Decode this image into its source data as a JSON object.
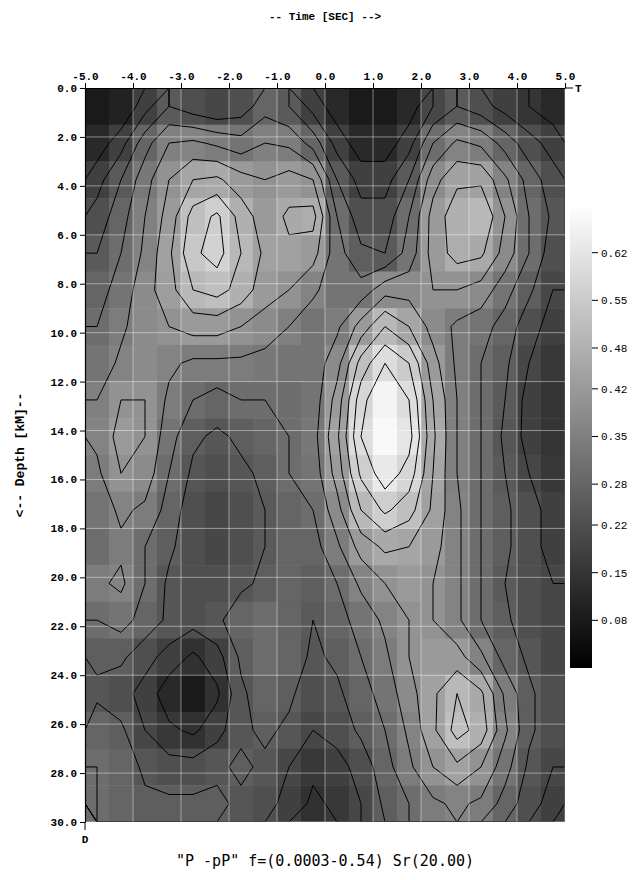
{
  "chart_data": {
    "type": "heatmap",
    "title": "\"P -pP\" f=(0.0003-0.54) Sr(20.00)",
    "x_label": "-- Time [SEC]  -->",
    "y_label": "<-- Depth [kM]--",
    "annotations": [
      "T",
      "D"
    ],
    "xlim": [
      -5,
      5
    ],
    "ylim": [
      0,
      30
    ],
    "xticks": [
      {
        "value": -5,
        "label": "-5.0"
      },
      {
        "value": -4,
        "label": "-4.0"
      },
      {
        "value": -3,
        "label": "-3.0"
      },
      {
        "value": -2,
        "label": "-2.0"
      },
      {
        "value": -1,
        "label": "-1.0"
      },
      {
        "value": 0,
        "label": "0.0"
      },
      {
        "value": 1,
        "label": "1.0"
      },
      {
        "value": 2,
        "label": "2.0"
      },
      {
        "value": 3,
        "label": "3.0"
      },
      {
        "value": 4,
        "label": "4.0"
      },
      {
        "value": 5,
        "label": "5.0"
      }
    ],
    "yticks": [
      {
        "value": 0,
        "label": "0.0"
      },
      {
        "value": 2,
        "label": "2.0"
      },
      {
        "value": 4,
        "label": "4.0"
      },
      {
        "value": 6,
        "label": "6.0"
      },
      {
        "value": 8,
        "label": "8.0"
      },
      {
        "value": 10,
        "label": "10.0"
      },
      {
        "value": 12,
        "label": "12.0"
      },
      {
        "value": 14,
        "label": "14.0"
      },
      {
        "value": 16,
        "label": "16.0"
      },
      {
        "value": 18,
        "label": "18.0"
      },
      {
        "value": 20,
        "label": "20.0"
      },
      {
        "value": 22,
        "label": "22.0"
      },
      {
        "value": 24,
        "label": "24.0"
      },
      {
        "value": 26,
        "label": "26.0"
      },
      {
        "value": 28,
        "label": "28.0"
      },
      {
        "value": 30,
        "label": "30.0"
      }
    ],
    "grid": true,
    "colors": [
      "#000000",
      "#ffffff"
    ],
    "colorbar": {
      "range": [
        0.01,
        0.69
      ],
      "ticks": [
        0.08,
        0.15,
        0.22,
        0.28,
        0.35,
        0.42,
        0.48,
        0.55,
        0.62
      ]
    },
    "contour_levels": [
      0.15,
      0.2,
      0.25,
      0.3,
      0.35,
      0.4,
      0.45,
      0.5,
      0.55,
      0.6
    ],
    "x": [
      -4.75,
      -4.25,
      -3.75,
      -3.25,
      -2.75,
      -2.25,
      -1.75,
      -1.25,
      -0.75,
      -0.25,
      0.25,
      0.75,
      1.25,
      1.75,
      2.25,
      2.75,
      3.25,
      3.75,
      4.25,
      4.75
    ],
    "y": [
      0.75,
      2.25,
      3.75,
      5.25,
      6.75,
      8.25,
      9.75,
      11.25,
      12.75,
      14.25,
      15.75,
      17.25,
      18.75,
      20.25,
      21.75,
      23.25,
      24.75,
      26.25,
      27.75,
      29.25
    ],
    "z": [
      [
        0.08,
        0.1,
        0.18,
        0.25,
        0.22,
        0.2,
        0.22,
        0.28,
        0.25,
        0.18,
        0.12,
        0.08,
        0.08,
        0.12,
        0.2,
        0.25,
        0.22,
        0.18,
        0.15,
        0.12
      ],
      [
        0.12,
        0.18,
        0.28,
        0.35,
        0.36,
        0.34,
        0.32,
        0.35,
        0.34,
        0.28,
        0.18,
        0.12,
        0.12,
        0.18,
        0.3,
        0.36,
        0.34,
        0.28,
        0.22,
        0.18
      ],
      [
        0.18,
        0.25,
        0.33,
        0.4,
        0.45,
        0.46,
        0.42,
        0.4,
        0.42,
        0.4,
        0.25,
        0.18,
        0.18,
        0.25,
        0.38,
        0.44,
        0.44,
        0.36,
        0.28,
        0.22
      ],
      [
        0.22,
        0.28,
        0.35,
        0.42,
        0.52,
        0.56,
        0.48,
        0.42,
        0.46,
        0.47,
        0.3,
        0.22,
        0.22,
        0.3,
        0.42,
        0.48,
        0.5,
        0.4,
        0.3,
        0.24
      ],
      [
        0.25,
        0.3,
        0.36,
        0.44,
        0.54,
        0.57,
        0.5,
        0.44,
        0.44,
        0.42,
        0.32,
        0.26,
        0.25,
        0.32,
        0.42,
        0.47,
        0.46,
        0.38,
        0.3,
        0.22
      ],
      [
        0.28,
        0.32,
        0.38,
        0.43,
        0.5,
        0.52,
        0.48,
        0.42,
        0.4,
        0.36,
        0.32,
        0.32,
        0.38,
        0.38,
        0.4,
        0.4,
        0.38,
        0.32,
        0.26,
        0.2
      ],
      [
        0.3,
        0.34,
        0.38,
        0.4,
        0.42,
        0.42,
        0.4,
        0.38,
        0.35,
        0.32,
        0.34,
        0.42,
        0.5,
        0.45,
        0.38,
        0.34,
        0.32,
        0.28,
        0.22,
        0.18
      ],
      [
        0.32,
        0.36,
        0.38,
        0.36,
        0.34,
        0.34,
        0.34,
        0.33,
        0.32,
        0.32,
        0.38,
        0.52,
        0.6,
        0.55,
        0.42,
        0.34,
        0.3,
        0.26,
        0.2,
        0.16
      ],
      [
        0.35,
        0.4,
        0.4,
        0.34,
        0.3,
        0.28,
        0.3,
        0.3,
        0.3,
        0.32,
        0.42,
        0.58,
        0.66,
        0.6,
        0.45,
        0.35,
        0.3,
        0.25,
        0.18,
        0.15
      ],
      [
        0.36,
        0.42,
        0.4,
        0.32,
        0.26,
        0.24,
        0.26,
        0.28,
        0.3,
        0.33,
        0.44,
        0.6,
        0.67,
        0.62,
        0.46,
        0.35,
        0.3,
        0.24,
        0.18,
        0.15
      ],
      [
        0.34,
        0.4,
        0.38,
        0.3,
        0.24,
        0.22,
        0.24,
        0.26,
        0.3,
        0.32,
        0.42,
        0.56,
        0.63,
        0.58,
        0.45,
        0.35,
        0.3,
        0.25,
        0.2,
        0.16
      ],
      [
        0.32,
        0.36,
        0.34,
        0.28,
        0.22,
        0.2,
        0.22,
        0.25,
        0.28,
        0.3,
        0.38,
        0.5,
        0.56,
        0.52,
        0.44,
        0.36,
        0.3,
        0.26,
        0.22,
        0.18
      ],
      [
        0.3,
        0.34,
        0.3,
        0.26,
        0.22,
        0.2,
        0.22,
        0.25,
        0.28,
        0.28,
        0.34,
        0.42,
        0.46,
        0.45,
        0.42,
        0.36,
        0.3,
        0.26,
        0.22,
        0.18
      ],
      [
        0.34,
        0.36,
        0.3,
        0.24,
        0.22,
        0.22,
        0.24,
        0.26,
        0.28,
        0.26,
        0.3,
        0.36,
        0.4,
        0.42,
        0.4,
        0.36,
        0.3,
        0.25,
        0.22,
        0.2
      ],
      [
        0.3,
        0.32,
        0.28,
        0.24,
        0.22,
        0.24,
        0.28,
        0.3,
        0.28,
        0.25,
        0.28,
        0.32,
        0.36,
        0.4,
        0.4,
        0.36,
        0.3,
        0.26,
        0.22,
        0.2
      ],
      [
        0.26,
        0.26,
        0.22,
        0.18,
        0.14,
        0.18,
        0.26,
        0.3,
        0.28,
        0.24,
        0.26,
        0.3,
        0.34,
        0.4,
        0.42,
        0.42,
        0.36,
        0.28,
        0.24,
        0.2
      ],
      [
        0.24,
        0.22,
        0.18,
        0.12,
        0.08,
        0.14,
        0.24,
        0.28,
        0.26,
        0.22,
        0.24,
        0.28,
        0.32,
        0.38,
        0.44,
        0.5,
        0.46,
        0.34,
        0.26,
        0.22
      ],
      [
        0.28,
        0.26,
        0.2,
        0.16,
        0.14,
        0.18,
        0.24,
        0.26,
        0.24,
        0.2,
        0.22,
        0.26,
        0.3,
        0.36,
        0.44,
        0.52,
        0.48,
        0.36,
        0.26,
        0.22
      ],
      [
        0.3,
        0.28,
        0.24,
        0.22,
        0.22,
        0.24,
        0.26,
        0.24,
        0.2,
        0.16,
        0.18,
        0.22,
        0.28,
        0.34,
        0.4,
        0.44,
        0.4,
        0.32,
        0.24,
        0.2
      ],
      [
        0.3,
        0.28,
        0.26,
        0.26,
        0.26,
        0.26,
        0.24,
        0.22,
        0.18,
        0.14,
        0.16,
        0.2,
        0.26,
        0.3,
        0.34,
        0.36,
        0.34,
        0.28,
        0.22,
        0.18
      ]
    ]
  }
}
